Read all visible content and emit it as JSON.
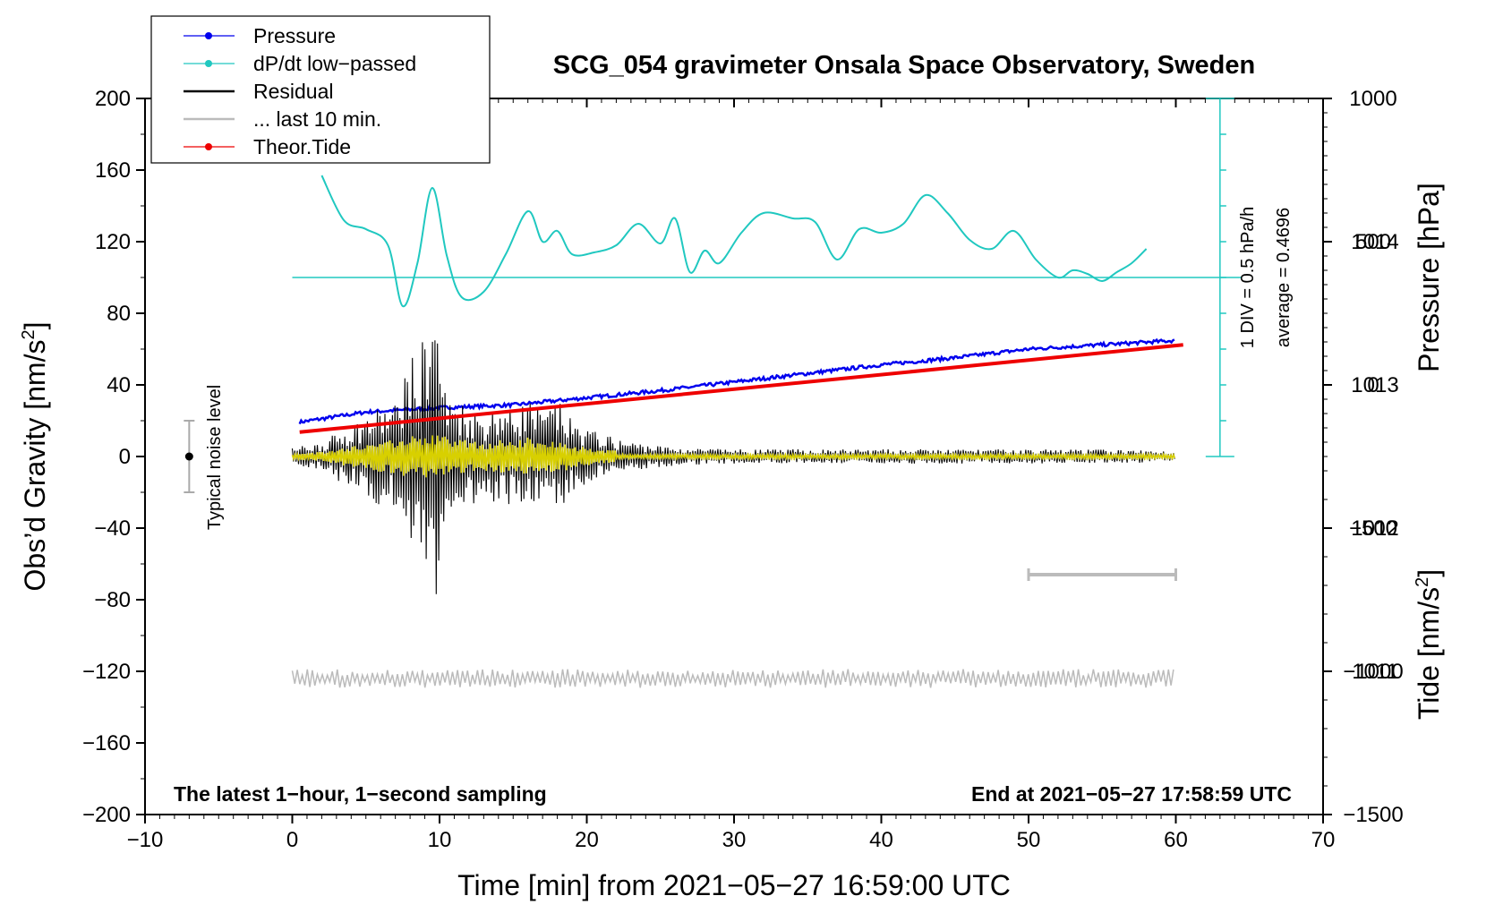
{
  "chart_data": {
    "type": "line",
    "title": "SCG_054 gravimeter Onsala Space Observatory, Sweden",
    "xlabel": "Time [min] from 2021−05−27 16:59:00 UTC",
    "ylabel_left_main": "Obs’d Gravity [nm/s",
    "ylabel_left_sup": "2",
    "ylabel_left_end": "]",
    "ylabel_right_pressure": "Pressure [hPa]",
    "ylabel_right_tide_main": "Tide [nm/s",
    "ylabel_right_tide_sup": "2",
    "ylabel_right_tide_end": "]",
    "xlim": [
      -10,
      70
    ],
    "ylim": [
      -200,
      200
    ],
    "pressure_ylim": [
      1010,
      1015
    ],
    "tide_ylim": [
      -1500,
      1000
    ],
    "x_ticks": [
      "−10",
      "0",
      "10",
      "20",
      "30",
      "40",
      "50",
      "60",
      "70"
    ],
    "y_ticks": [
      "−200",
      "−160",
      "−120",
      "−80",
      "−40",
      "0",
      "40",
      "80",
      "120",
      "160",
      "200"
    ],
    "pressure_ticks": [
      "1011",
      "1012",
      "1013",
      "1014"
    ],
    "tide_ticks": [
      "−1500",
      "−1000",
      "−500",
      "0",
      "500",
      "1000"
    ],
    "legend": [
      {
        "name": "Pressure",
        "color": "#0000ee",
        "marker": true
      },
      {
        "name": "dP/dt low−passed",
        "color": "#20c8c0",
        "marker": true
      },
      {
        "name": "Residual",
        "color": "#000000",
        "marker": false
      },
      {
        "name": "... last 10 min.",
        "color": "#bbbbbb",
        "marker": false
      },
      {
        "name": "Theor.Tide",
        "color": "#ee0000",
        "marker": true
      }
    ],
    "legend_position": "top-left",
    "annotations": {
      "noise_label": "Typical noise level",
      "div_label": "1 DIV = 0.5 hPa/h",
      "avg_label": "average = 0.4696",
      "bottom_left": "The latest 1−hour, 1−second sampling",
      "bottom_right": "End at 2021−05−27 17:58:59 UTC"
    },
    "noise_level": {
      "x": -7,
      "center": 0,
      "half_range": 20
    },
    "dpdt_scale": {
      "x": 63,
      "baseline_gravity": 100,
      "divisions": 10,
      "bottom": 0,
      "top": 200
    },
    "ten_min_bar": {
      "x_start": 50,
      "x_end": 60,
      "y": -66
    },
    "series": [
      {
        "name": "Pressure",
        "axis": "pressure",
        "color": "#0000ee",
        "x": [
          0.5,
          5,
          10,
          15,
          20,
          25,
          30,
          35,
          40,
          45,
          50,
          55,
          60
        ],
        "values": [
          1012.74,
          1012.81,
          1012.84,
          1012.86,
          1012.91,
          1012.96,
          1013.02,
          1013.08,
          1013.14,
          1013.19,
          1013.25,
          1013.28,
          1013.31
        ]
      },
      {
        "name": "dP/dt low−passed",
        "axis": "gravity",
        "color": "#20c8c0",
        "x": [
          2,
          3.5,
          5,
          6.5,
          7.5,
          8.5,
          9.5,
          10.5,
          11.5,
          13,
          14.5,
          16,
          17,
          18,
          19,
          20.5,
          22,
          23.5,
          25,
          26,
          27,
          28,
          29,
          30.5,
          32,
          34,
          35.5,
          37,
          38.5,
          40,
          41.5,
          43,
          44.5,
          46,
          47.5,
          49,
          50.5,
          52,
          53,
          54,
          55,
          56,
          57,
          58
        ],
        "values": [
          157,
          132,
          127,
          118,
          84,
          108,
          150,
          112,
          89,
          92,
          113,
          137,
          120,
          126,
          113,
          114,
          118,
          130,
          119,
          133,
          103,
          115,
          108,
          125,
          136,
          133,
          131,
          110,
          127,
          125,
          130,
          146,
          136,
          121,
          116,
          126,
          110,
          100,
          104,
          102,
          98,
          103,
          108,
          116
        ]
      },
      {
        "name": "Residual",
        "axis": "gravity",
        "color": "#000000",
        "x": [
          0,
          2,
          4,
          6,
          7,
          8,
          8.5,
          9,
          9.5,
          10,
          10.5,
          11,
          12,
          13,
          14,
          15,
          16,
          17,
          18,
          19,
          20,
          22,
          24,
          26,
          30,
          35,
          40,
          45,
          50,
          55,
          60
        ],
        "envelope": [
          5,
          8,
          18,
          28,
          30,
          60,
          48,
          75,
          95,
          70,
          30,
          35,
          28,
          24,
          30,
          26,
          34,
          24,
          32,
          20,
          16,
          10,
          7,
          5,
          4,
          4,
          4,
          4,
          4,
          4,
          3
        ]
      },
      {
        "name": "... last 10 min.",
        "axis": "gravity",
        "color": "#bbbbbb",
        "x_range": [
          0,
          60
        ],
        "center": -124,
        "amplitude": 4
      },
      {
        "name": "Theor.Tide",
        "axis": "tide",
        "color": "#ee0000",
        "x": [
          0.5,
          60.5
        ],
        "values": [
          -165,
          140
        ]
      }
    ]
  }
}
